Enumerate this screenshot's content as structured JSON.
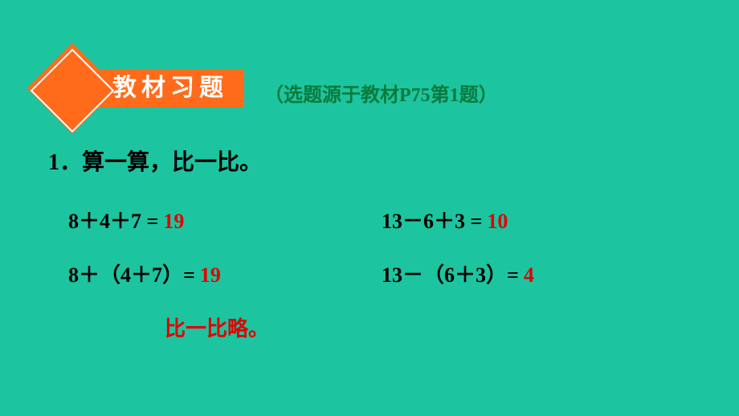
{
  "header": {
    "title": "教材习题",
    "subtitle": "（选题源于教材P75第1题）"
  },
  "question": {
    "number": "1．",
    "title": "算一算，比一比。"
  },
  "equations": {
    "row1": {
      "left": {
        "expr": "8＋4＋7 =",
        "answer": "19"
      },
      "right": {
        "expr": "13－6＋3 =",
        "answer": "10"
      }
    },
    "row2": {
      "left": {
        "expr": "8＋（4＋7）=",
        "answer": "19"
      },
      "right": {
        "expr": "13－（6＋3）=",
        "answer": "4"
      }
    }
  },
  "footer": "比一比略。",
  "colors": {
    "background": "#1dc4a0",
    "accent": "#ff6b1a",
    "subtitle": "#0a7a3a",
    "answer": "#e30000",
    "text": "#000000",
    "white": "#ffffff"
  }
}
